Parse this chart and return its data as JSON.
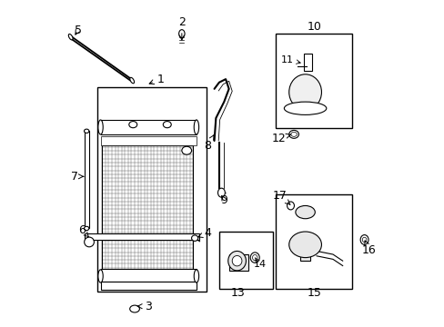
{
  "background_color": "#ffffff",
  "line_color": "#000000",
  "fig_width": 4.89,
  "fig_height": 3.6,
  "dpi": 100,
  "font_size_labels": 9,
  "font_size_small": 7
}
